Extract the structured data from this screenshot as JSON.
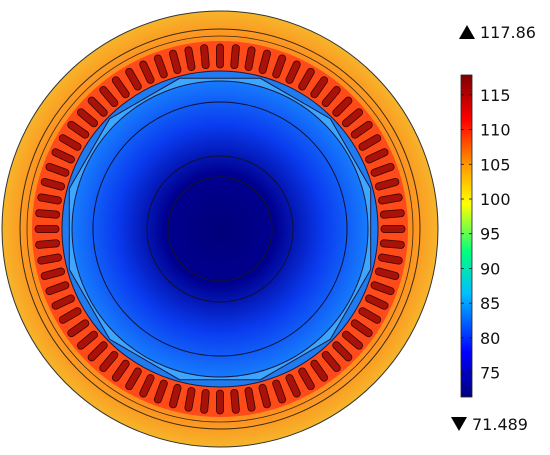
{
  "plot": {
    "max_value": "117.86",
    "min_value": "71.489",
    "max_marker_icon": "triangle-up-icon",
    "min_marker_icon": "triangle-down-icon",
    "colorbar_ticks": [
      "115",
      "110",
      "105",
      "100",
      "95",
      "90",
      "85",
      "80",
      "75"
    ],
    "colorbar_range": [
      71.489,
      117.86
    ],
    "colormap": [
      "#00007f",
      "#0000ff",
      "#00bfff",
      "#00ff80",
      "#ffff00",
      "#ff9900",
      "#ff0000",
      "#7f0000"
    ],
    "stator_slot_count": 72
  },
  "chart_data": {
    "type": "heatmap",
    "value_range": [
      71.489,
      117.86
    ],
    "colorbar_ticks": [
      115,
      110,
      105,
      100,
      95,
      90,
      85,
      80,
      75
    ],
    "regions": [
      {
        "name": "rotor-core",
        "value": 73
      },
      {
        "name": "rotor-outer",
        "value": 84
      },
      {
        "name": "stator-slots",
        "value": 113
      },
      {
        "name": "stator-yoke",
        "value": 104
      }
    ]
  }
}
